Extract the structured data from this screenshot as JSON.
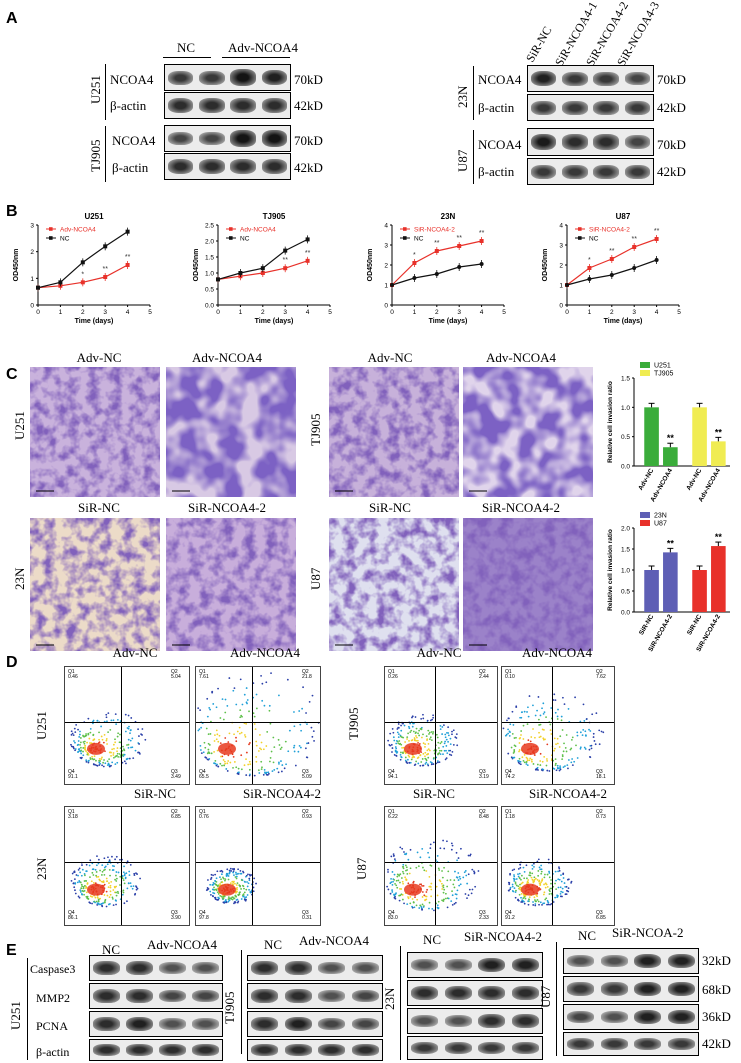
{
  "panels": {
    "a": "A",
    "b": "B",
    "c": "C",
    "d": "D",
    "e": "E"
  },
  "panel_a": {
    "left_groups": [
      "NC",
      "Adv-NCOA4"
    ],
    "left_cell_lines": [
      "U251",
      "TJ905"
    ],
    "right_groups": [
      "SiR-NC",
      "SiR-NCOA4-1",
      "SiR-NCOA4-2",
      "SiR-NCOA4-3"
    ],
    "right_cell_lines": [
      "23N",
      "U87"
    ],
    "proteins": [
      "NCOA4",
      "β-actin"
    ],
    "sizes": [
      "70kD",
      "42kD"
    ]
  },
  "panel_b": {
    "xlabel": "Time (days)",
    "ylabel": "OD450nm",
    "star1": "*",
    "star2": "**"
  },
  "chart_data": [
    {
      "type": "line",
      "title": "U251",
      "xlabel": "Time (days)",
      "ylabel": "OD450nm",
      "xlim": [
        0,
        5
      ],
      "ylim": [
        0,
        3
      ],
      "yticks": [
        0,
        1,
        2,
        3
      ],
      "series": [
        {
          "name": "Adv-NCOA4",
          "color": "#e8312a",
          "x": [
            0,
            1,
            2,
            3,
            4
          ],
          "y": [
            0.65,
            0.72,
            0.85,
            1.05,
            1.5
          ]
        },
        {
          "name": "NC",
          "color": "#111111",
          "x": [
            0,
            1,
            2,
            3,
            4
          ],
          "y": [
            0.65,
            0.85,
            1.6,
            2.2,
            2.75
          ]
        }
      ],
      "annotations": [
        {
          "x": 2,
          "text": "*"
        },
        {
          "x": 3,
          "text": "**"
        },
        {
          "x": 4,
          "text": "**"
        }
      ]
    },
    {
      "type": "line",
      "title": "TJ905",
      "xlabel": "Time (days)",
      "ylabel": "OD450nm",
      "xlim": [
        0,
        5
      ],
      "ylim": [
        0,
        2.5
      ],
      "yticks": [
        0,
        0.5,
        1.0,
        1.5,
        2.0,
        2.5
      ],
      "series": [
        {
          "name": "Adv-NCOA4",
          "color": "#e8312a",
          "x": [
            0,
            1,
            2,
            3,
            4
          ],
          "y": [
            0.8,
            0.9,
            1.0,
            1.15,
            1.38
          ]
        },
        {
          "name": "NC",
          "color": "#111111",
          "x": [
            0,
            1,
            2,
            3,
            4
          ],
          "y": [
            0.8,
            1.0,
            1.15,
            1.7,
            2.05
          ]
        }
      ],
      "annotations": [
        {
          "x": 3,
          "text": "**"
        },
        {
          "x": 4,
          "text": "**"
        }
      ]
    },
    {
      "type": "line",
      "title": "23N",
      "xlabel": "Time (days)",
      "ylabel": "OD450nm",
      "xlim": [
        0,
        5
      ],
      "ylim": [
        0,
        4
      ],
      "yticks": [
        0,
        1,
        2,
        3,
        4
      ],
      "series": [
        {
          "name": "SiR-NCOA4-2",
          "color": "#e8312a",
          "x": [
            0,
            1,
            2,
            3,
            4
          ],
          "y": [
            1.0,
            2.1,
            2.7,
            2.95,
            3.2
          ]
        },
        {
          "name": "NC",
          "color": "#111111",
          "x": [
            0,
            1,
            2,
            3,
            4
          ],
          "y": [
            1.0,
            1.35,
            1.55,
            1.9,
            2.05
          ]
        }
      ],
      "annotations": [
        {
          "x": 1,
          "text": "*"
        },
        {
          "x": 2,
          "text": "**"
        },
        {
          "x": 3,
          "text": "**"
        },
        {
          "x": 4,
          "text": "**"
        }
      ]
    },
    {
      "type": "line",
      "title": "U87",
      "xlabel": "Time (days)",
      "ylabel": "OD450nm",
      "xlim": [
        0,
        5
      ],
      "ylim": [
        0,
        4
      ],
      "yticks": [
        0,
        1,
        2,
        3,
        4
      ],
      "series": [
        {
          "name": "SiR-NCOA4-2",
          "color": "#e8312a",
          "x": [
            0,
            1,
            2,
            3,
            4
          ],
          "y": [
            1.0,
            1.85,
            2.3,
            2.9,
            3.3
          ]
        },
        {
          "name": "NC",
          "color": "#111111",
          "x": [
            0,
            1,
            2,
            3,
            4
          ],
          "y": [
            1.0,
            1.3,
            1.5,
            1.85,
            2.25
          ]
        }
      ],
      "annotations": [
        {
          "x": 1,
          "text": "*"
        },
        {
          "x": 2,
          "text": "**"
        },
        {
          "x": 3,
          "text": "**"
        },
        {
          "x": 4,
          "text": "**"
        }
      ]
    },
    {
      "type": "bar",
      "ylabel": "Relative cell invasion ratio",
      "ylim": [
        0,
        1.5
      ],
      "yticks": [
        0.0,
        0.5,
        1.0,
        1.5
      ],
      "categories": [
        "Adv-NC",
        "Adv-NCOA4",
        "Adv-NC",
        "Adv-NCOA4"
      ],
      "values": [
        1.0,
        0.32,
        1.0,
        0.42
      ],
      "colors": [
        "#3aac3a",
        "#3aac3a",
        "#f0ec52",
        "#f0ec52"
      ],
      "legend": [
        {
          "name": "U251",
          "color": "#3aac3a"
        },
        {
          "name": "TJ905",
          "color": "#f0ec52"
        }
      ],
      "annotations": [
        {
          "bar": 1,
          "text": "**"
        },
        {
          "bar": 3,
          "text": "**"
        }
      ]
    },
    {
      "type": "bar",
      "ylabel": "Relative cell invasion ratio",
      "ylim": [
        0,
        2.0
      ],
      "yticks": [
        0.0,
        0.5,
        1.0,
        1.5,
        2.0
      ],
      "categories": [
        "SiR-NC",
        "SiR-NCOA4-2",
        "SiR-NC",
        "SiR-NCOA4-2"
      ],
      "values": [
        1.0,
        1.42,
        1.0,
        1.57
      ],
      "colors": [
        "#5e5fb5",
        "#5e5fb5",
        "#e8312a",
        "#e8312a"
      ],
      "legend": [
        {
          "name": "23N",
          "color": "#5e5fb5"
        },
        {
          "name": "U87",
          "color": "#e8312a"
        }
      ],
      "annotations": [
        {
          "bar": 1,
          "text": "**"
        },
        {
          "bar": 3,
          "text": "**"
        }
      ]
    }
  ],
  "panel_c": {
    "top_titles": [
      "Adv-NC",
      "Adv-NCOA4",
      "Adv-NC",
      "Adv-NCOA4"
    ],
    "bottom_titles": [
      "SiR-NC",
      "SiR-NCOA4-2",
      "SiR-NC",
      "SiR-NCOA4-2"
    ],
    "row_labels": [
      "U251",
      "TJ905",
      "23N",
      "U87"
    ]
  },
  "panel_d": {
    "top_titles": [
      "Adv-NC",
      "Adv-NCOA4",
      "Adv-NC",
      "Adv-NCOA4"
    ],
    "bottom_titles": [
      "SiR-NC",
      "SiR-NCOA4-2",
      "SiR-NC",
      "SiR-NCOA4-2"
    ],
    "row_labels": [
      "U251",
      "TJ905",
      "23N",
      "U87"
    ],
    "plots": [
      {
        "q1": "Q1\n0.46",
        "q2": "Q2\n5.04",
        "q3": "Q3\n3.49",
        "q4": "Q4\n91.1"
      },
      {
        "q1": "Q1\n7.61",
        "q2": "Q2\n21.8",
        "q3": "Q3\n5.09",
        "q4": "Q4\n65.5"
      },
      {
        "q1": "Q1\n0.26",
        "q2": "Q2\n2.44",
        "q3": "Q3\n3.19",
        "q4": "Q4\n94.1"
      },
      {
        "q1": "Q1\n0.10",
        "q2": "Q2\n7.62",
        "q3": "Q3\n18.1",
        "q4": "Q4\n74.2"
      },
      {
        "q1": "Q1\n3.18",
        "q2": "Q2\n6.85",
        "q3": "Q3\n3.90",
        "q4": "Q4\n86.1"
      },
      {
        "q1": "Q1\n0.76",
        "q2": "Q2\n0.93",
        "q3": "Q3\n0.31",
        "q4": "Q4\n97.8"
      },
      {
        "q1": "Q1\n6.22",
        "q2": "Q2\n8.48",
        "q3": "Q3\n2.33",
        "q4": "Q4\n83.0"
      },
      {
        "q1": "Q1\n1.18",
        "q2": "Q2\n0.73",
        "q3": "Q3\n6.85",
        "q4": "Q4\n91.2"
      }
    ]
  },
  "panel_e": {
    "groups_1": [
      "NC",
      "Adv-NCOA4"
    ],
    "groups_2": [
      "NC",
      "Adv-NCOA4"
    ],
    "groups_3": [
      "NC",
      "SiR-NCOA4-2"
    ],
    "groups_4": [
      "NC",
      "SiR-NCOA-2"
    ],
    "proteins": [
      "Caspase3",
      "MMP2",
      "PCNA",
      "β-actin"
    ],
    "cell_lines": [
      "U251",
      "TJ905",
      "23N",
      "U87"
    ],
    "sizes": [
      "32kD",
      "68kD",
      "36kD",
      "42kD"
    ]
  }
}
